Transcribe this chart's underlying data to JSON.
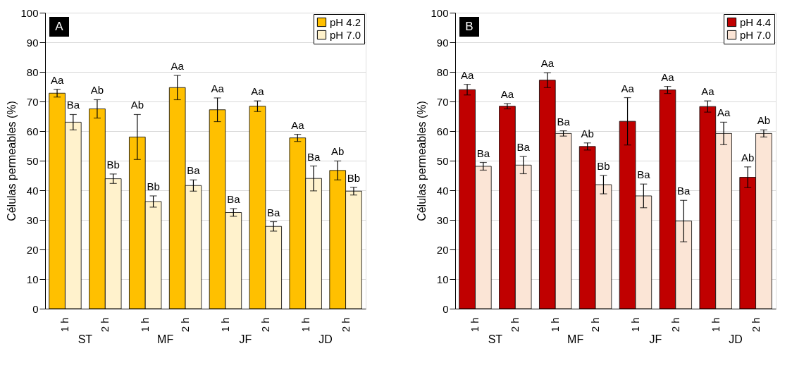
{
  "chart_data": [
    {
      "type": "bar",
      "title": "A",
      "ylabel": "Células permeables (%)",
      "categories": [
        "1 h",
        "2 h",
        "1 h",
        "2 h",
        "1 h",
        "2 h",
        "1 h",
        "2 h"
      ],
      "annotations": [
        "ST",
        "MF",
        "JF",
        "JD"
      ],
      "ylim": [
        0,
        100
      ],
      "yticks": [
        0,
        10,
        20,
        30,
        40,
        50,
        60,
        70,
        80,
        90,
        100
      ],
      "grid": "y",
      "legend": "top right",
      "series": [
        {
          "name": "pH 4.2",
          "color": "#ffc000",
          "values": [
            72.8,
            67.5,
            58,
            74.7,
            67.2,
            68.4,
            57.7,
            46.7
          ],
          "errors": [
            1.3,
            3.1,
            7.6,
            4.1,
            4,
            1.8,
            1.2,
            3.2
          ],
          "value_labels": [
            "Aa",
            "Ab",
            "Ab",
            "Aa",
            "Aa",
            "Aa",
            "Aa",
            "Ab"
          ]
        },
        {
          "name": "pH 7.0",
          "color": "#fff2cc",
          "values": [
            63,
            43.9,
            36.2,
            41.6,
            32.5,
            27.8,
            44,
            39.7
          ],
          "errors": [
            2.6,
            1.6,
            1.9,
            1.9,
            1.3,
            1.6,
            4.2,
            1.3
          ],
          "value_labels": [
            "Ba",
            "Bb",
            "Bb",
            "Ba",
            "Ba",
            "Ba",
            "Ba",
            "Bb"
          ]
        }
      ]
    },
    {
      "type": "bar",
      "title": "B",
      "ylabel": "Células permeables (%)",
      "categories": [
        "1 h",
        "2 h",
        "1 h",
        "2 h",
        "1 h",
        "2 h",
        "1 h",
        "2 h"
      ],
      "annotations": [
        "ST",
        "MF",
        "JF",
        "JD"
      ],
      "ylim": [
        0,
        100
      ],
      "yticks": [
        0,
        10,
        20,
        30,
        40,
        50,
        60,
        70,
        80,
        90,
        100
      ],
      "grid": "y",
      "legend": "top right",
      "series": [
        {
          "name": "pH 4.4",
          "color": "#c00000",
          "values": [
            74,
            68.4,
            77.2,
            54.8,
            63.3,
            73.9,
            68.3,
            44.4
          ],
          "errors": [
            1.8,
            0.9,
            2.5,
            1.2,
            8,
            1.2,
            1.9,
            3.5
          ],
          "value_labels": [
            "Aa",
            "Aa",
            "Aa",
            "Ab",
            "Aa",
            "Aa",
            "Aa",
            "Ab"
          ]
        },
        {
          "name": "pH 7.0",
          "color": "#fbe5d6",
          "values": [
            48.1,
            48.5,
            59.2,
            41.9,
            38.1,
            29.6,
            59.2,
            59.2
          ],
          "errors": [
            1.3,
            2.9,
            0.9,
            3.1,
            4,
            7,
            3.8,
            1.2
          ],
          "value_labels": [
            "Ba",
            "Ba",
            "Ba",
            "Bb",
            "Ba",
            "Ba",
            "Aa",
            "Ab"
          ]
        }
      ]
    }
  ]
}
